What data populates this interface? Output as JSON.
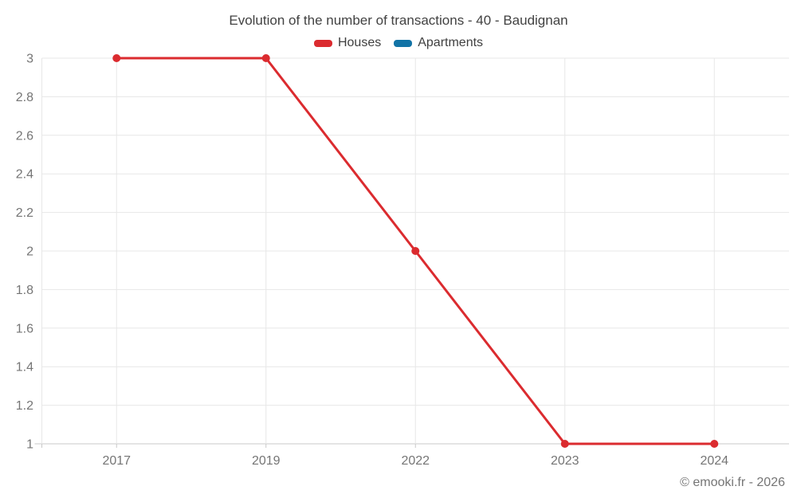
{
  "chart_data": {
    "type": "line",
    "title": "Evolution of the number of transactions - 40 - Baudignan",
    "categories": [
      "2017",
      "2019",
      "2022",
      "2023",
      "2024"
    ],
    "series": [
      {
        "name": "Houses",
        "color": "#db2b2f",
        "values": [
          3,
          3,
          2,
          1,
          1
        ]
      },
      {
        "name": "Apartments",
        "color": "#1173a6",
        "values": []
      }
    ],
    "xlabel": "",
    "ylabel": "",
    "ylim": [
      1,
      3
    ],
    "y_tick_labels": [
      "1",
      "1.2",
      "1.4",
      "1.6",
      "1.8",
      "2",
      "2.2",
      "2.4",
      "2.6",
      "2.8",
      "3"
    ],
    "grid": true,
    "legend_position": "top"
  },
  "footer": {
    "credit": "© emooki.fr - 2026"
  },
  "colors": {
    "background": "#ffffff",
    "grid": "#e7e7e7",
    "axis": "#c9c9c9",
    "tick_label": "#757575",
    "title_text": "#424242",
    "legend_text": "#3f3f3f"
  }
}
